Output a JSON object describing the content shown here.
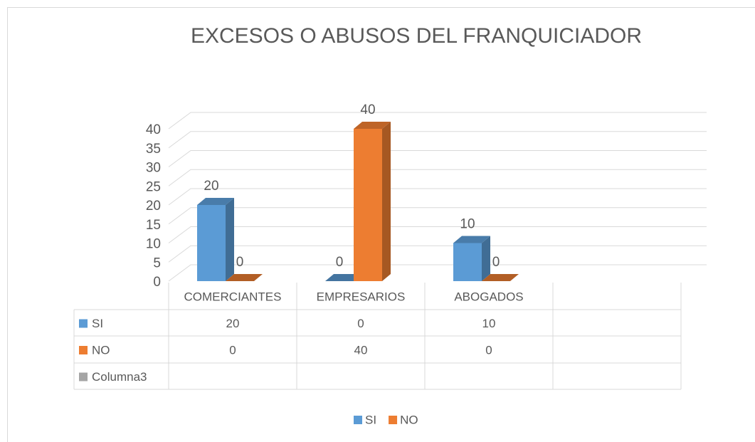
{
  "chart_data": {
    "type": "bar3d",
    "title": "EXCESOS O ABUSOS DEL FRANQUICIADOR",
    "categories": [
      "COMERCIANTES",
      "EMPRESARIOS",
      "ABOGADOS",
      null
    ],
    "series": [
      {
        "name": "SI",
        "color": "#5b9bd5",
        "values": [
          20,
          0,
          10,
          null
        ]
      },
      {
        "name": "NO",
        "color": "#ed7d31",
        "values": [
          0,
          40,
          0,
          null
        ]
      },
      {
        "name": "Columna3",
        "color": "#a5a5a5",
        "values": [
          null,
          null,
          null,
          null
        ]
      }
    ],
    "ylim": [
      0,
      40
    ],
    "yticks": [
      0,
      5,
      10,
      15,
      20,
      25,
      30,
      35,
      40
    ],
    "grid": true,
    "data_table": true,
    "legend": "bottom"
  }
}
